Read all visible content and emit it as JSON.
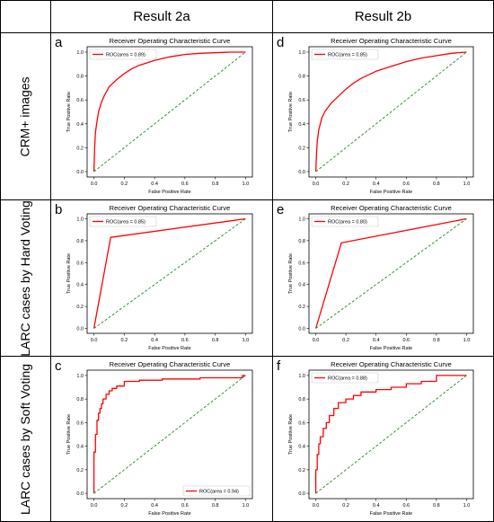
{
  "headers": {
    "col1": "Result 2a",
    "col2": "Result 2b",
    "row1": "CRM+ images",
    "row2": "LARC cases by Hard Voting",
    "row3": "LARC cases by Soft Voting"
  },
  "chart_data": [
    {
      "panel": "a",
      "type": "line",
      "title": "Receiver Operating Characteristic Curve",
      "xlabel": "False Positive Rate",
      "ylabel": "True Positive Rate",
      "xlim": [
        0,
        1
      ],
      "ylim": [
        0,
        1
      ],
      "xticks": [
        "0.0",
        "0.2",
        "0.4",
        "0.6",
        "0.8",
        "1.0"
      ],
      "yticks": [
        "0.0",
        "0.2",
        "0.4",
        "0.6",
        "0.8",
        "1.0"
      ],
      "legend": "ROC(area = 0.89)",
      "legend_position": "top-left",
      "colors": {
        "roc": "#ff0000",
        "diagonal": "#228b22"
      },
      "series": [
        {
          "x": [
            0,
            0.005,
            0.01,
            0.02,
            0.03,
            0.05,
            0.07,
            0.1,
            0.15,
            0.2,
            0.25,
            0.3,
            0.4,
            0.5,
            0.6,
            0.7,
            0.8,
            0.9,
            1.0
          ],
          "y": [
            0,
            0.2,
            0.33,
            0.42,
            0.5,
            0.58,
            0.64,
            0.71,
            0.77,
            0.82,
            0.86,
            0.89,
            0.93,
            0.96,
            0.98,
            0.99,
            0.995,
            1.0,
            1.0
          ]
        },
        {
          "x": [
            0,
            1
          ],
          "y": [
            0,
            1
          ],
          "dashed": true
        }
      ]
    },
    {
      "panel": "d",
      "type": "line",
      "title": "Receiver Operating Characteristic Curve",
      "xlabel": "False Positive Rate",
      "ylabel": "True Positive Rate",
      "xlim": [
        0,
        1
      ],
      "ylim": [
        0,
        1
      ],
      "xticks": [
        "0.0",
        "0.2",
        "0.4",
        "0.6",
        "0.8",
        "1.0"
      ],
      "yticks": [
        "0.0",
        "0.2",
        "0.4",
        "0.6",
        "0.8",
        "1.0"
      ],
      "legend": "ROC(area = 0.85)",
      "legend_position": "top-left",
      "colors": {
        "roc": "#ff0000",
        "diagonal": "#228b22"
      },
      "series": [
        {
          "x": [
            0,
            0.005,
            0.01,
            0.02,
            0.04,
            0.06,
            0.1,
            0.15,
            0.2,
            0.25,
            0.3,
            0.4,
            0.5,
            0.6,
            0.7,
            0.8,
            0.9,
            1.0
          ],
          "y": [
            0,
            0.15,
            0.25,
            0.35,
            0.45,
            0.5,
            0.57,
            0.63,
            0.69,
            0.74,
            0.78,
            0.84,
            0.88,
            0.92,
            0.95,
            0.97,
            0.99,
            1.0
          ]
        },
        {
          "x": [
            0,
            1
          ],
          "y": [
            0,
            1
          ],
          "dashed": true
        }
      ]
    },
    {
      "panel": "b",
      "type": "line",
      "title": "Receiver Operating Characteristic Curve",
      "xlabel": "False Positive Rate",
      "ylabel": "True Positive Rate",
      "xlim": [
        0,
        1
      ],
      "ylim": [
        0,
        1
      ],
      "xticks": [
        "0.0",
        "0.2",
        "0.4",
        "0.6",
        "0.8",
        "1.0"
      ],
      "yticks": [
        "0.0",
        "0.2",
        "0.4",
        "0.6",
        "0.8",
        "1.0"
      ],
      "legend": "ROC(area = 0.85)",
      "legend_position": "top-left",
      "colors": {
        "roc": "#ff0000",
        "diagonal": "#228b22"
      },
      "series": [
        {
          "x": [
            0,
            0.11,
            1.0
          ],
          "y": [
            0,
            0.83,
            1.0
          ]
        },
        {
          "x": [
            0,
            1
          ],
          "y": [
            0,
            1
          ],
          "dashed": true
        }
      ]
    },
    {
      "panel": "e",
      "type": "line",
      "title": "Receiver Operating Characteristic Curve",
      "xlabel": "False Positive Rate",
      "ylabel": "True Positive Rate",
      "xlim": [
        0,
        1
      ],
      "ylim": [
        0,
        1
      ],
      "xticks": [
        "0.0",
        "0.2",
        "0.4",
        "0.6",
        "0.8",
        "1.0"
      ],
      "yticks": [
        "0.0",
        "0.2",
        "0.4",
        "0.6",
        "0.8",
        "1.0"
      ],
      "legend": "ROC(area = 0.80)",
      "legend_position": "top-left",
      "colors": {
        "roc": "#ff0000",
        "diagonal": "#228b22"
      },
      "series": [
        {
          "x": [
            0,
            0.17,
            1.0
          ],
          "y": [
            0,
            0.78,
            1.0
          ]
        },
        {
          "x": [
            0,
            1
          ],
          "y": [
            0,
            1
          ],
          "dashed": true
        }
      ]
    },
    {
      "panel": "c",
      "type": "line",
      "title": "Receiver Operating Characteristic Curve",
      "xlabel": "False Positive Rate",
      "ylabel": "True Positive Rate",
      "xlim": [
        0,
        1
      ],
      "ylim": [
        0,
        1
      ],
      "xticks": [
        "0.0",
        "0.2",
        "0.4",
        "0.6",
        "0.8",
        "1.0"
      ],
      "yticks": [
        "0.0",
        "0.2",
        "0.4",
        "0.6",
        "0.8",
        "1.0"
      ],
      "legend": "ROC(area = 0.94)",
      "legend_position": "bottom-right",
      "colors": {
        "roc": "#ff0000",
        "diagonal": "#228b22"
      },
      "series": [
        {
          "x": [
            0,
            0.0,
            0.01,
            0.01,
            0.02,
            0.02,
            0.03,
            0.03,
            0.04,
            0.04,
            0.05,
            0.05,
            0.06,
            0.06,
            0.08,
            0.08,
            0.1,
            0.1,
            0.12,
            0.12,
            0.15,
            0.15,
            0.2,
            0.2,
            0.3,
            0.3,
            0.45,
            0.45,
            0.7,
            0.7,
            0.98,
            0.98,
            1.0
          ],
          "y": [
            0,
            0.35,
            0.35,
            0.5,
            0.5,
            0.62,
            0.62,
            0.68,
            0.68,
            0.72,
            0.72,
            0.76,
            0.76,
            0.8,
            0.8,
            0.84,
            0.84,
            0.87,
            0.87,
            0.89,
            0.89,
            0.91,
            0.91,
            0.95,
            0.95,
            0.96,
            0.96,
            0.97,
            0.97,
            0.98,
            0.98,
            1.0,
            1.0
          ]
        },
        {
          "x": [
            0,
            1
          ],
          "y": [
            0,
            1
          ],
          "dashed": true
        }
      ]
    },
    {
      "panel": "f",
      "type": "line",
      "title": "Receiver Operating Characteristic Curve",
      "xlabel": "False Positive Rate",
      "ylabel": "True Positive Rate",
      "xlim": [
        0,
        1
      ],
      "ylim": [
        0,
        1
      ],
      "xticks": [
        "0.0",
        "0.2",
        "0.4",
        "0.6",
        "0.8",
        "1.0"
      ],
      "yticks": [
        "0.0",
        "0.2",
        "0.4",
        "0.6",
        "0.8",
        "1.0"
      ],
      "legend": "ROC(area = 0.88)",
      "legend_position": "top-left",
      "colors": {
        "roc": "#ff0000",
        "diagonal": "#228b22"
      },
      "series": [
        {
          "x": [
            0,
            0.0,
            0.01,
            0.01,
            0.02,
            0.02,
            0.03,
            0.03,
            0.05,
            0.05,
            0.07,
            0.07,
            0.09,
            0.09,
            0.12,
            0.12,
            0.15,
            0.15,
            0.2,
            0.2,
            0.25,
            0.25,
            0.3,
            0.3,
            0.4,
            0.4,
            0.5,
            0.5,
            0.6,
            0.6,
            0.7,
            0.7,
            0.8,
            0.8,
            1.0
          ],
          "y": [
            0,
            0.2,
            0.2,
            0.33,
            0.33,
            0.42,
            0.42,
            0.48,
            0.48,
            0.55,
            0.55,
            0.6,
            0.6,
            0.66,
            0.66,
            0.72,
            0.72,
            0.77,
            0.77,
            0.8,
            0.8,
            0.83,
            0.83,
            0.86,
            0.86,
            0.88,
            0.88,
            0.9,
            0.9,
            0.93,
            0.93,
            0.95,
            0.95,
            1.0,
            1.0
          ]
        },
        {
          "x": [
            0,
            1
          ],
          "y": [
            0,
            1
          ],
          "dashed": true
        }
      ]
    }
  ]
}
